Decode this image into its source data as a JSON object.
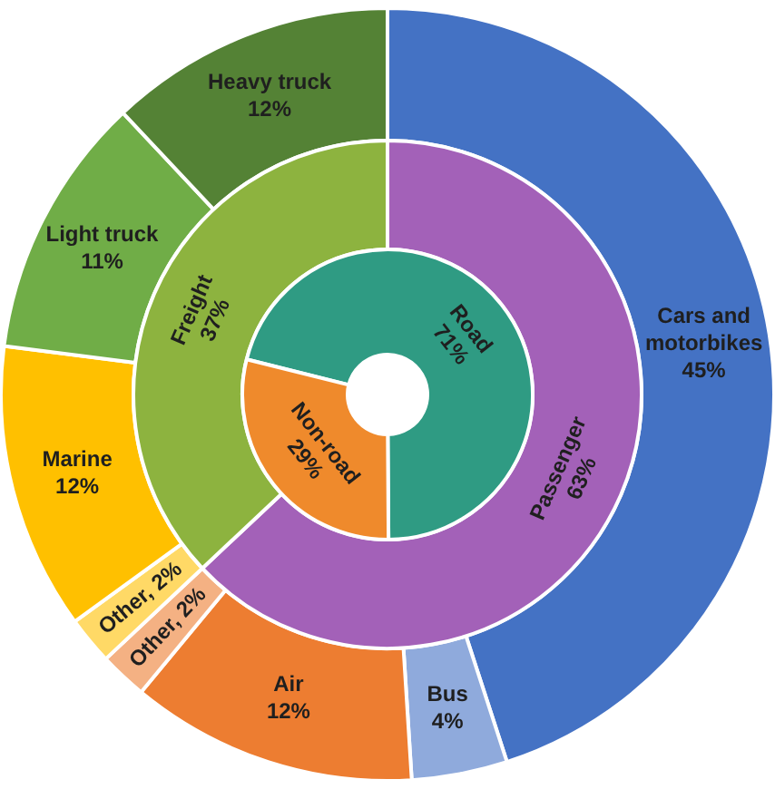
{
  "chart_data": [
    {
      "type": "donut",
      "categories": [
        "Cars and motorbikes",
        "Bus",
        "Air",
        null,
        null,
        "Marine",
        "Light truck",
        "Heavy truck"
      ],
      "values": [
        45,
        4,
        12,
        2,
        2,
        12,
        11,
        12
      ],
      "value_labels": [
        "45%",
        "4%",
        "12%",
        "Other, 2%",
        "Other, 2%",
        "12%",
        "11%",
        "12%"
      ],
      "colors": [
        "#4472c4",
        "#8faadc",
        "#ed7d31",
        "#f4b183",
        "#ffd966",
        "#ffc000",
        "#70ad47",
        "#548235"
      ]
    },
    {
      "type": "donut",
      "categories": [
        "Passenger",
        "Freight"
      ],
      "values": [
        63,
        37
      ],
      "value_labels": [
        "63%",
        "37%"
      ],
      "colors": [
        "#a361b8",
        "#8db33f"
      ]
    },
    {
      "type": "donut",
      "categories": [
        "Road",
        "Non-road"
      ],
      "values": [
        71,
        29
      ],
      "value_labels": [
        "71%",
        "29%"
      ],
      "colors": [
        "#2f9b83",
        "#ef8a2c"
      ]
    }
  ]
}
